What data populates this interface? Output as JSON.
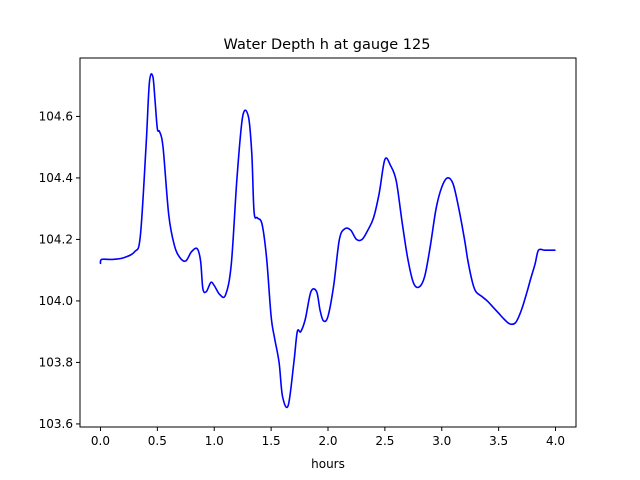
{
  "chart_data": {
    "type": "line",
    "title": "Water Depth h at gauge 125",
    "xlabel": "hours",
    "ylabel": "",
    "xlim": [
      -0.18,
      4.18
    ],
    "ylim": [
      103.59,
      104.79
    ],
    "grid": false,
    "xticks": [
      0.0,
      0.5,
      1.0,
      1.5,
      2.0,
      2.5,
      3.0,
      3.5,
      4.0
    ],
    "xtick_labels": [
      "0.0",
      "0.5",
      "1.0",
      "1.5",
      "2.0",
      "2.5",
      "3.0",
      "3.5",
      "4.0"
    ],
    "yticks": [
      103.6,
      103.8,
      104.0,
      104.2,
      104.4,
      104.6
    ],
    "ytick_labels": [
      "103.6",
      "103.8",
      "104.0",
      "104.2",
      "104.4",
      "104.6"
    ],
    "series": [
      {
        "color": "#0000ff",
        "x": [
          0.0,
          0.01,
          0.1,
          0.2,
          0.3,
          0.35,
          0.4,
          0.43,
          0.46,
          0.48,
          0.5,
          0.52,
          0.55,
          0.6,
          0.65,
          0.7,
          0.75,
          0.8,
          0.85,
          0.88,
          0.9,
          0.93,
          0.97,
          1.0,
          1.05,
          1.1,
          1.15,
          1.2,
          1.25,
          1.3,
          1.33,
          1.35,
          1.38,
          1.42,
          1.46,
          1.5,
          1.53,
          1.57,
          1.6,
          1.65,
          1.7,
          1.73,
          1.76,
          1.8,
          1.85,
          1.9,
          1.93,
          1.96,
          2.0,
          2.05,
          2.1,
          2.15,
          2.2,
          2.25,
          2.3,
          2.35,
          2.4,
          2.45,
          2.5,
          2.55,
          2.6,
          2.65,
          2.7,
          2.75,
          2.8,
          2.85,
          2.9,
          2.95,
          3.0,
          3.05,
          3.1,
          3.15,
          3.2,
          3.23,
          3.27,
          3.3,
          3.35,
          3.4,
          3.45,
          3.5,
          3.55,
          3.6,
          3.65,
          3.7,
          3.75,
          3.78,
          3.82,
          3.85,
          3.9,
          3.95,
          4.0
        ],
        "y": [
          104.12,
          104.135,
          104.135,
          104.14,
          104.16,
          104.21,
          104.5,
          104.71,
          104.73,
          104.65,
          104.56,
          104.55,
          104.5,
          104.28,
          104.18,
          104.14,
          104.13,
          104.16,
          104.17,
          104.13,
          104.04,
          104.03,
          104.06,
          104.05,
          104.02,
          104.02,
          104.12,
          104.4,
          104.6,
          104.6,
          104.48,
          104.29,
          104.27,
          104.25,
          104.14,
          103.95,
          103.88,
          103.8,
          103.69,
          103.66,
          103.8,
          103.9,
          103.9,
          103.94,
          104.03,
          104.03,
          103.97,
          103.935,
          103.95,
          104.05,
          104.2,
          104.235,
          104.23,
          104.2,
          104.2,
          104.23,
          104.27,
          104.35,
          104.46,
          104.44,
          104.39,
          104.26,
          104.14,
          104.06,
          104.045,
          104.08,
          104.18,
          104.3,
          104.37,
          104.4,
          104.38,
          104.3,
          104.2,
          104.13,
          104.06,
          104.03,
          104.015,
          104.0,
          103.98,
          103.96,
          103.94,
          103.925,
          103.93,
          103.97,
          104.03,
          104.07,
          104.12,
          104.165,
          104.165,
          104.165,
          104.165
        ]
      }
    ]
  }
}
